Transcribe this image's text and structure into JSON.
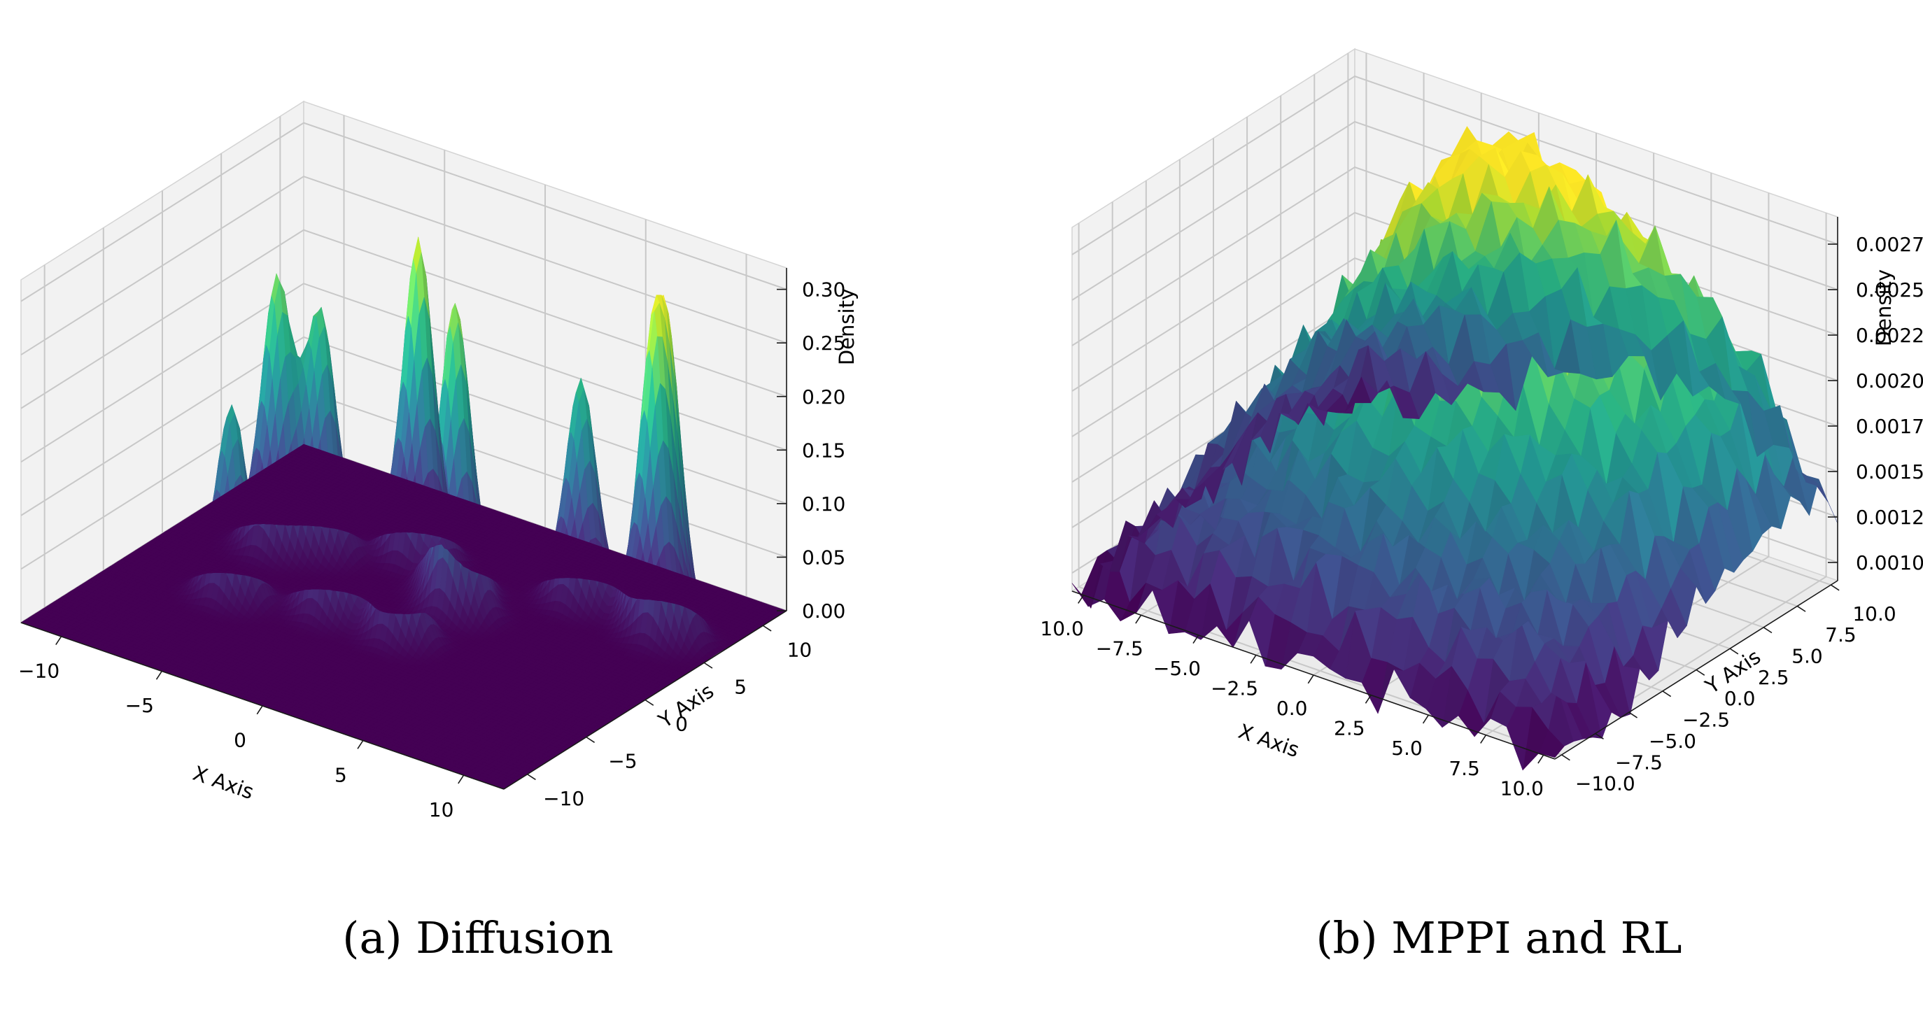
{
  "chart_data": [
    {
      "type": "surface3d",
      "caption": "(a) Diffusion",
      "xlabel": "X Axis",
      "ylabel": "Y Axis",
      "zlabel": "Density",
      "xlim": [
        -12,
        12
      ],
      "ylim": [
        -12,
        12
      ],
      "zlim": [
        0,
        0.32
      ],
      "xticks": [
        "−10",
        "−5",
        "0",
        "5",
        "10"
      ],
      "yticks": [
        "−10",
        "−5",
        "0",
        "5",
        "10"
      ],
      "zticks": [
        "0.00",
        "0.05",
        "0.10",
        "0.15",
        "0.20",
        "0.25",
        "0.30"
      ],
      "colormap": "viridis",
      "grid": true,
      "peaks": [
        {
          "x": -7.5,
          "y": 2.0,
          "z": 0.25
        },
        {
          "x": -6.0,
          "y": 3.2,
          "z": 0.22
        },
        {
          "x": -6.5,
          "y": -3.5,
          "z": 0.18
        },
        {
          "x": -2.5,
          "y": 5.5,
          "z": 0.3
        },
        {
          "x": -2.5,
          "y": -2.0,
          "z": 0.19
        },
        {
          "x": 0.5,
          "y": 3.5,
          "z": 0.26
        },
        {
          "x": 1.5,
          "y": 2.0,
          "z": 0.24
        },
        {
          "x": 1.0,
          "y": -2.0,
          "z": 0.18
        },
        {
          "x": 5.0,
          "y": 6.5,
          "z": 0.21
        },
        {
          "x": 8.5,
          "y": 6.8,
          "z": 0.24
        },
        {
          "x": 9.5,
          "y": 6.0,
          "z": 0.25
        }
      ]
    },
    {
      "type": "surface3d",
      "caption": "(b) MPPI and RL",
      "xlabel": "X Axis",
      "ylabel": "Y Axis",
      "zlabel": "Density",
      "xlim": [
        10.5,
        -10.5
      ],
      "ylim": [
        -10.5,
        10.5
      ],
      "zlim": [
        0.0009,
        0.0029
      ],
      "xticks": [
        "10.0",
        "−7.5",
        "−5.0",
        "−2.5",
        "0.0",
        "2.5",
        "5.0",
        "7.5",
        "10.0"
      ],
      "yticks": [
        "−10.0",
        "−7.5",
        "−5.0",
        "−2.5",
        "0.0",
        "2.5",
        "5.0",
        "7.5",
        "10.0"
      ],
      "zticks": [
        "0.00100",
        "0.00125",
        "0.00150",
        "0.00175",
        "0.00200",
        "0.00225",
        "0.00250",
        "0.00275"
      ],
      "colormap": "viridis",
      "grid": true,
      "surface": {
        "base": 0.00125,
        "bumps": [
          {
            "x": -1.0,
            "y": 3.5,
            "z": 0.0014,
            "s": 5.5
          },
          {
            "x": 0.5,
            "y": 0.5,
            "z": 0.00065,
            "s": 3.8
          },
          {
            "x": -7.0,
            "y": 7.5,
            "z": 0.00045,
            "s": 4.0
          }
        ]
      }
    }
  ]
}
